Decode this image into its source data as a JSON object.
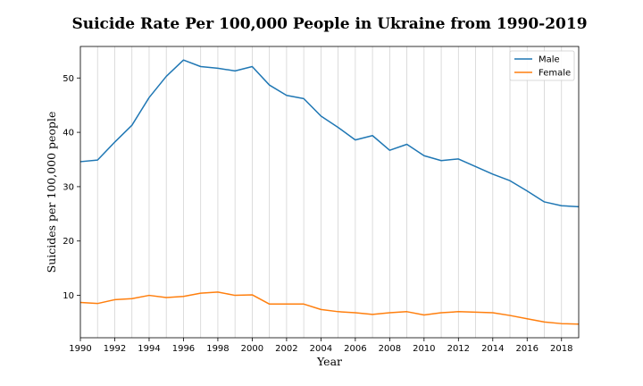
{
  "chart_data": {
    "type": "line",
    "title": "Suicide Rate Per 100,000 People in Ukraine from 1990-2019",
    "xlabel": "Year",
    "ylabel": "Suicides per 100,000 people",
    "xlim": [
      1990,
      2019
    ],
    "ylim": [
      2.2,
      55.8
    ],
    "xticks": [
      1990,
      1992,
      1994,
      1996,
      1998,
      2000,
      2002,
      2004,
      2006,
      2008,
      2010,
      2012,
      2014,
      2016,
      2018
    ],
    "yticks": [
      10,
      20,
      30,
      40,
      50
    ],
    "grid": "vertical",
    "legend_position": "top-right",
    "x": [
      1990,
      1991,
      1992,
      1993,
      1994,
      1995,
      1996,
      1997,
      1998,
      1999,
      2000,
      2001,
      2002,
      2003,
      2004,
      2005,
      2006,
      2007,
      2008,
      2009,
      2010,
      2011,
      2012,
      2013,
      2014,
      2015,
      2016,
      2017,
      2018,
      2019
    ],
    "series": [
      {
        "name": "Male",
        "color": "#1f77b4",
        "values": [
          34.6,
          34.9,
          38.2,
          41.3,
          46.4,
          50.3,
          53.3,
          52.1,
          51.8,
          51.3,
          52.1,
          48.7,
          46.8,
          46.2,
          43.0,
          40.9,
          38.6,
          39.4,
          36.7,
          37.8,
          35.7,
          34.8,
          35.1,
          33.7,
          32.3,
          31.1,
          29.2,
          27.2,
          26.5,
          26.3
        ]
      },
      {
        "name": "Female",
        "color": "#ff7f0e",
        "values": [
          8.7,
          8.5,
          9.2,
          9.4,
          10.0,
          9.6,
          9.8,
          10.4,
          10.6,
          10.0,
          10.1,
          8.4,
          8.4,
          8.4,
          7.4,
          7.0,
          6.8,
          6.5,
          6.8,
          7.0,
          6.4,
          6.8,
          7.0,
          6.9,
          6.8,
          6.3,
          5.7,
          5.1,
          4.8,
          4.7
        ]
      }
    ]
  }
}
